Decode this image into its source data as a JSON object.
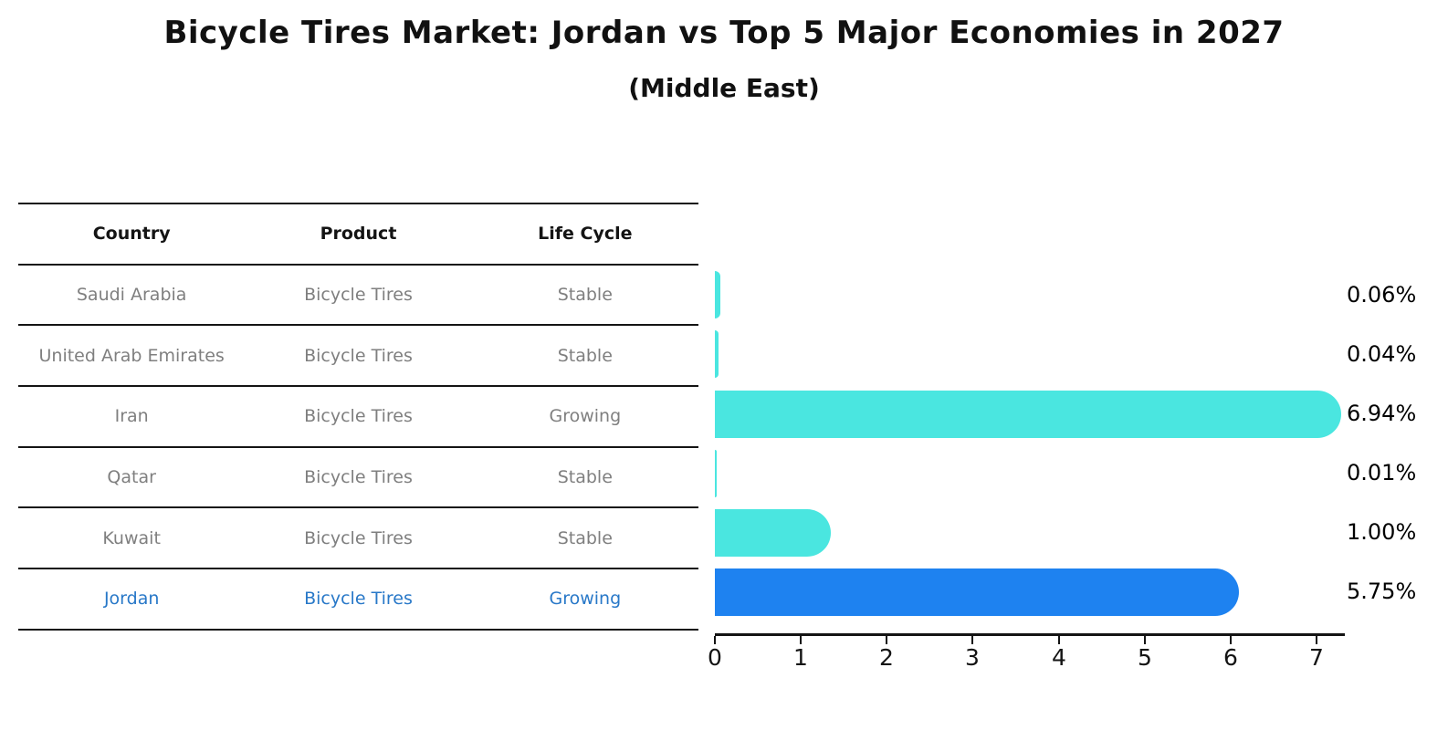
{
  "title": "Bicycle Tires Market: Jordan vs Top 5 Major Economies in 2027",
  "subtitle": "(Middle East)",
  "colors": {
    "bar": "#4ae6e0",
    "bar_highlight": "#1e82f0",
    "highlight_text": "#2878c8",
    "table_text": "#7f7f7f",
    "text": "#141414"
  },
  "table": {
    "headers": [
      "Country",
      "Product",
      "Life Cycle"
    ]
  },
  "rows": [
    {
      "country": "Saudi Arabia",
      "product": "Bicycle Tires",
      "life_cycle": "Stable"
    },
    {
      "country": "United Arab Emirates",
      "product": "Bicycle Tires",
      "life_cycle": "Stable"
    },
    {
      "country": "Iran",
      "product": "Bicycle Tires",
      "life_cycle": "Growing"
    },
    {
      "country": "Qatar",
      "product": "Bicycle Tires",
      "life_cycle": "Stable"
    },
    {
      "country": "Kuwait",
      "product": "Bicycle Tires",
      "life_cycle": "Stable"
    },
    {
      "country": "Jordan",
      "product": "Bicycle Tires",
      "life_cycle": "Growing"
    }
  ],
  "chart_data": {
    "type": "bar",
    "orientation": "horizontal",
    "title": "Bicycle Tires Market: Jordan vs Top 5 Major Economies in 2027 (Middle East)",
    "categories": [
      "Saudi Arabia",
      "United Arab Emirates",
      "Iran",
      "Qatar",
      "Kuwait",
      "Jordan"
    ],
    "values": [
      0.06,
      0.04,
      6.94,
      0.01,
      1.0,
      5.75
    ],
    "value_labels": [
      "0.06%",
      "0.04%",
      "6.94%",
      "0.01%",
      "1.00%",
      "5.75%"
    ],
    "xlabel": "",
    "ylabel": "",
    "xlim": [
      0,
      7
    ],
    "x_ticks": [
      "0",
      "1",
      "2",
      "3",
      "4",
      "5",
      "6",
      "7"
    ],
    "grid": false,
    "legend": false,
    "highlight_index": 5
  }
}
